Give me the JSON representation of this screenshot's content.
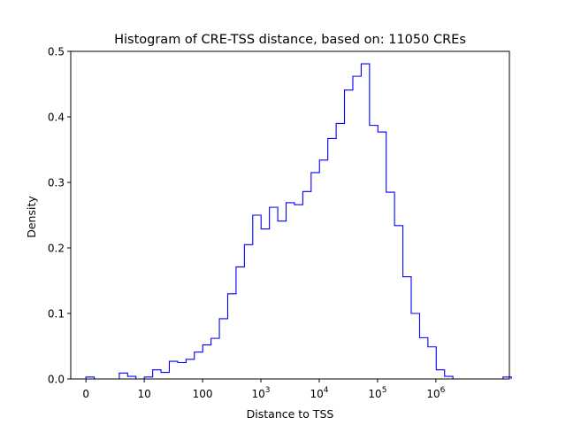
{
  "chart_data": {
    "type": "histogram",
    "title": "Histogram of CRE-TSS distance, based on: 11050 CREs",
    "xlabel": "Distance to TSS",
    "ylabel": "Density",
    "x_scale": "symlog",
    "xlim": [
      -0.26,
      7.26
    ],
    "ylim": [
      0,
      0.5
    ],
    "x_ticks": [
      {
        "label": "0",
        "base": "0",
        "exp": "",
        "value": 0
      },
      {
        "label": "10",
        "base": "10",
        "exp": "",
        "value": 1
      },
      {
        "label": "100",
        "base": "100",
        "exp": "",
        "value": 2
      },
      {
        "label": "10^3",
        "base": "10",
        "exp": "3",
        "value": 3
      },
      {
        "label": "10^4",
        "base": "10",
        "exp": "4",
        "value": 4
      },
      {
        "label": "10^5",
        "base": "10",
        "exp": "5",
        "value": 5
      },
      {
        "label": "10^6",
        "base": "10",
        "exp": "6",
        "value": 6
      }
    ],
    "y_ticks": [
      0.0,
      0.1,
      0.2,
      0.3,
      0.4,
      0.5
    ],
    "y_tick_labels": [
      "0.0",
      "0.1",
      "0.2",
      "0.3",
      "0.4",
      "0.5"
    ],
    "bin_width": 0.143,
    "bins_start": 0.0,
    "densities": [
      0.003,
      0.0,
      0.0,
      0.0,
      0.009,
      0.004,
      0.0,
      0.003,
      0.014,
      0.01,
      0.027,
      0.025,
      0.03,
      0.041,
      0.052,
      0.062,
      0.092,
      0.13,
      0.171,
      0.205,
      0.25,
      0.229,
      0.262,
      0.241,
      0.269,
      0.266,
      0.286,
      0.315,
      0.334,
      0.367,
      0.39,
      0.441,
      0.462,
      0.481,
      0.387,
      0.377,
      0.285,
      0.234,
      0.156,
      0.1,
      0.063,
      0.049,
      0.014,
      0.004,
      0.0,
      0.0,
      0.0,
      0.0,
      0.0,
      0.0,
      0.003
    ],
    "line_color": "#0000ff",
    "grid": false,
    "legend": "none"
  }
}
